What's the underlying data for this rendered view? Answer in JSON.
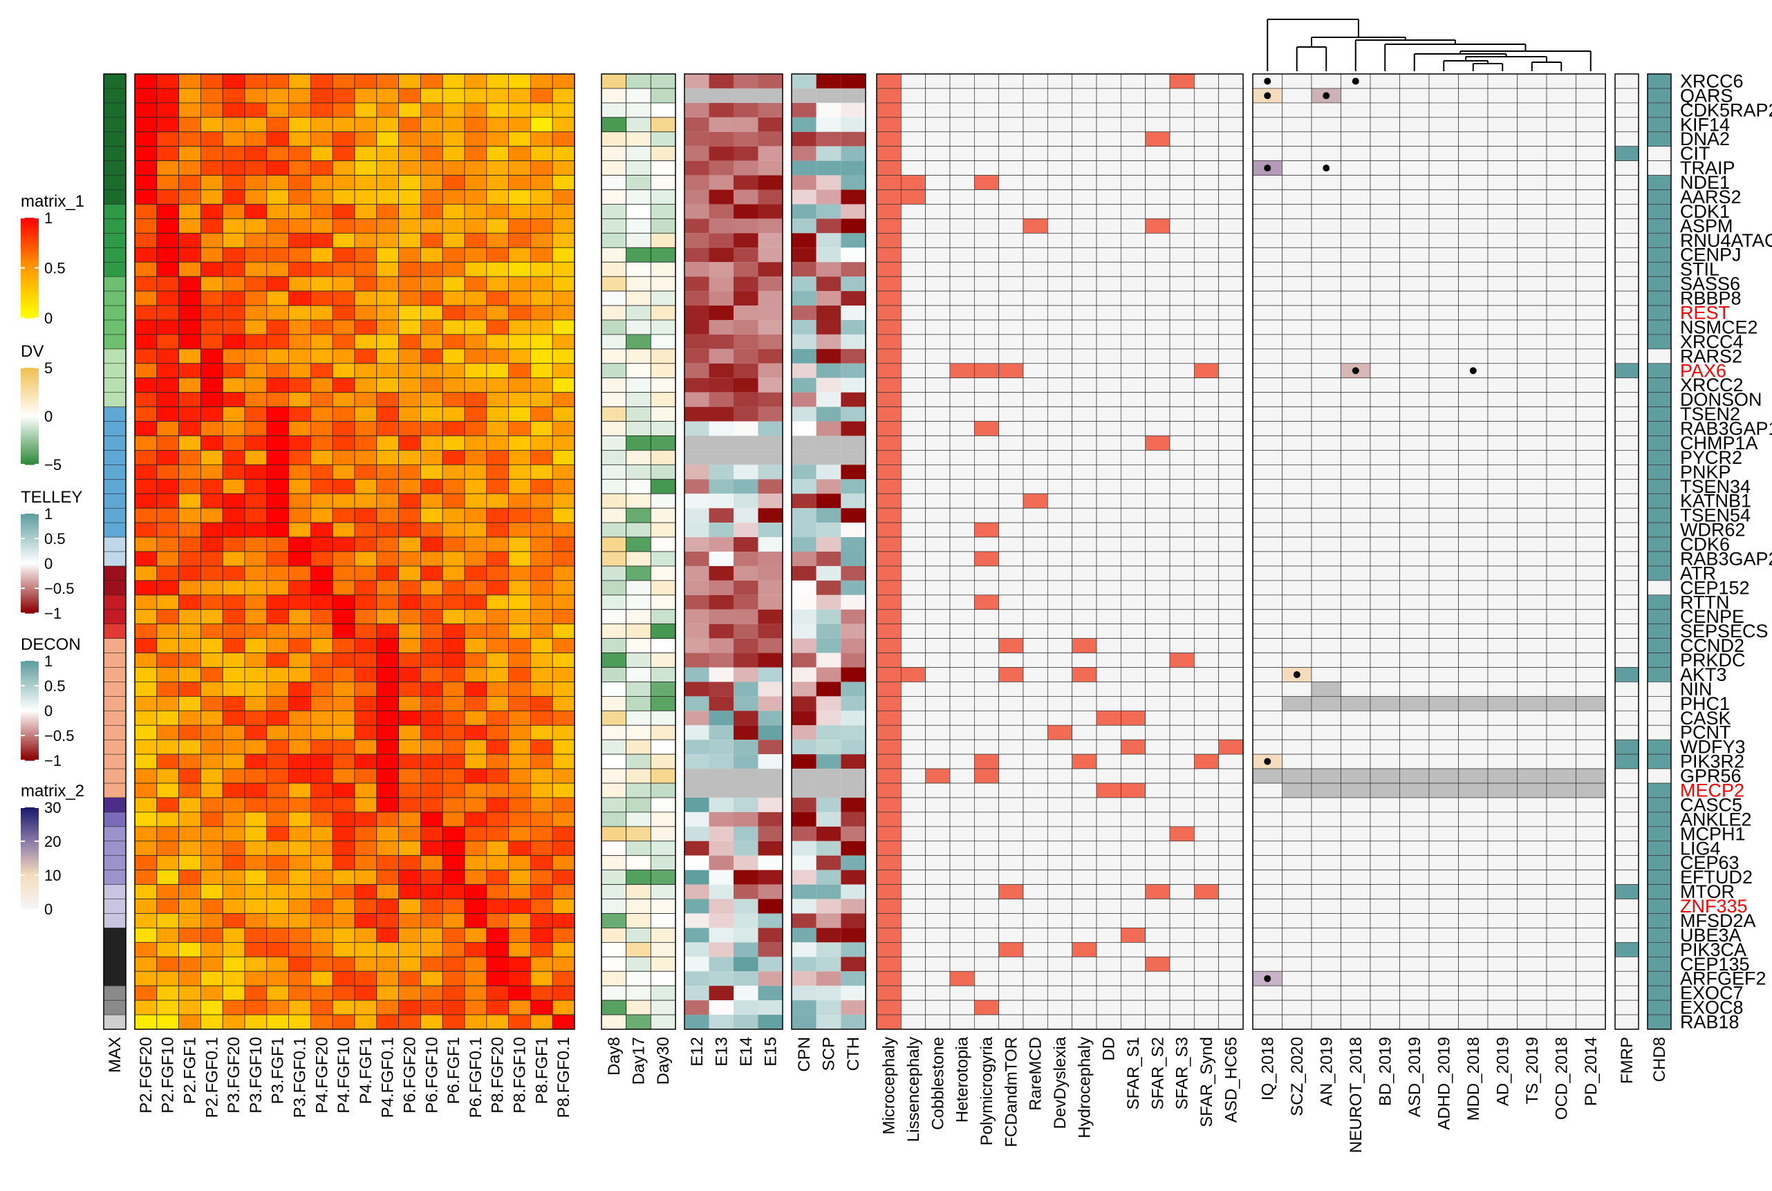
{
  "chart_data": {
    "type": "heatmap",
    "genes": [
      "XRCC6",
      "QARS",
      "CDK5RAP2",
      "KIF14",
      "DNA2",
      "CIT",
      "TRAIP",
      "NDE1",
      "AARS2",
      "CDK1",
      "ASPM",
      "RNU4ATAC",
      "CENPJ",
      "STIL",
      "SASS6",
      "RBBP8",
      "REST",
      "NSMCE2",
      "XRCC4",
      "RARS2",
      "PAX6",
      "XRCC2",
      "DONSON",
      "TSEN2",
      "RAB3GAP1",
      "CHMP1A",
      "PYCR2",
      "PNKP",
      "TSEN34",
      "KATNB1",
      "TSEN54",
      "WDR62",
      "CDK6",
      "RAB3GAP2",
      "ATR",
      "CEP152",
      "RTTN",
      "CENPE",
      "SEPSECS",
      "CCND2",
      "PRKDC",
      "AKT3",
      "NIN",
      "PHC1",
      "CASK",
      "PCNT",
      "WDFY3",
      "PIK3R2",
      "GPR56",
      "MECP2",
      "CASC5",
      "ANKLE2",
      "MCPH1",
      "LIG4",
      "CEP63",
      "EFTUD2",
      "MTOR",
      "ZNF335",
      "MFSD2A",
      "UBE3A",
      "PIK3CA",
      "CEP135",
      "ARFGEF2",
      "EXOC7",
      "EXOC8",
      "RAB18"
    ],
    "highlighted_genes": [
      "REST",
      "PAX6",
      "MECP2",
      "ZNF335"
    ],
    "highlight_color": "#ff0000",
    "max_column_label": "MAX",
    "max_cluster_colors": [
      "#1b6b2d",
      "#1b6b2d",
      "#1b6b2d",
      "#1b6b2d",
      "#1b6b2d",
      "#1b6b2d",
      "#1b6b2d",
      "#1b6b2d",
      "#1b6b2d",
      "#2e9a48",
      "#2e9a48",
      "#2e9a48",
      "#2e9a48",
      "#2e9a48",
      "#6cc070",
      "#6cc070",
      "#6cc070",
      "#6cc070",
      "#6cc070",
      "#b8e0b0",
      "#b8e0b0",
      "#b8e0b0",
      "#b8e0b0",
      "#5fa8d6",
      "#5fa8d6",
      "#5fa8d6",
      "#5fa8d6",
      "#5fa8d6",
      "#5fa8d6",
      "#5fa8d6",
      "#5fa8d6",
      "#5fa8d6",
      "#c0d8ea",
      "#c0d8ea",
      "#9e0f1e",
      "#9e0f1e",
      "#c41a26",
      "#c41a26",
      "#e03a33",
      "#f4a987",
      "#f4a987",
      "#f4a987",
      "#f4a987",
      "#f4a987",
      "#f4a987",
      "#f4a987",
      "#f4a987",
      "#f4a987",
      "#f4a987",
      "#f4a987",
      "#4d2d8a",
      "#7c6bb8",
      "#9d93cc",
      "#9d93cc",
      "#9d93cc",
      "#9d93cc",
      "#c8c5e3",
      "#c8c5e3",
      "#c8c5e3",
      "#222222",
      "#222222",
      "#222222",
      "#222222",
      "#8a8a8a",
      "#8a8a8a",
      "#cfcfcf"
    ],
    "matrix_1": {
      "columns": [
        "P2.FGF20",
        "P2.FGF10",
        "P2.FGF1",
        "P2.FGF0.1",
        "P3.FGF20",
        "P3.FGF10",
        "P3.FGF1",
        "P3.FGF0.1",
        "P4.FGF20",
        "P4.FGF10",
        "P4.FGF1",
        "P4.FGF0.1",
        "P6.FGF20",
        "P6.FGF10",
        "P6.FGF1",
        "P6.FGF0.1",
        "P8.FGF20",
        "P8.FGF10",
        "P8.FGF1",
        "P8.FGF0.1"
      ],
      "peak_column_per_gene": [
        0,
        0,
        0,
        0,
        0,
        0,
        0,
        0,
        0,
        1,
        1,
        1,
        1,
        1,
        2,
        2,
        2,
        2,
        2,
        3,
        3,
        3,
        3,
        6,
        6,
        6,
        6,
        6,
        6,
        6,
        6,
        6,
        7,
        7,
        8,
        8,
        9,
        9,
        9,
        11,
        11,
        11,
        11,
        11,
        11,
        11,
        11,
        11,
        11,
        11,
        11,
        13,
        14,
        14,
        14,
        14,
        15,
        15,
        15,
        16,
        16,
        16,
        16,
        17,
        18,
        19
      ],
      "scale": {
        "title": "matrix_1",
        "ticks": [
          1,
          0.5,
          0
        ],
        "range": [
          0,
          1
        ],
        "colors": [
          "#ffff00",
          "#ff9900",
          "#ff0000"
        ]
      }
    },
    "dv": {
      "columns": [
        "Day8",
        "Day17",
        "Day30"
      ],
      "scale": {
        "title": "DV",
        "ticks": [
          5,
          0,
          -5
        ],
        "range": [
          -5,
          5
        ],
        "colors": [
          "#2e8b3a",
          "#ffffff",
          "#f2c050"
        ]
      }
    },
    "telley": {
      "columns": [
        "E12",
        "E13",
        "E14",
        "E15"
      ],
      "missing_rows": [
        1,
        25,
        26,
        48,
        49
      ],
      "scale": {
        "title": "TELLEY",
        "ticks": [
          1,
          0.5,
          0,
          -0.5,
          -1
        ],
        "range": [
          -1,
          1
        ],
        "colors": [
          "#8b0000",
          "#ffffff",
          "#5f9ea0"
        ]
      }
    },
    "decon": {
      "columns": [
        "CPN",
        "SCP",
        "CTH"
      ],
      "missing_rows": [
        1,
        25,
        26,
        48,
        49
      ],
      "scale": {
        "title": "DECON",
        "ticks": [
          1,
          0.5,
          0,
          -0.5,
          -1
        ],
        "range": [
          -1,
          1
        ],
        "colors": [
          "#8b0000",
          "#ffffff",
          "#5f9ea0"
        ]
      }
    },
    "disease_categories": {
      "columns": [
        "Microcephaly",
        "Lissencephaly",
        "Cobblestone",
        "Heterotopia",
        "Polymicrogyria",
        "FCDandmTOR",
        "RareMCD",
        "DevDyslexia",
        "Hydrocephaly",
        "DD",
        "SFAR_S1",
        "SFAR_S2",
        "SFAR_S3",
        "SFAR_Synd",
        "ASD_HC65"
      ],
      "hit_color": "#f26b55",
      "hits": [
        [
          0,
          12
        ],
        [
          4,
          11
        ],
        [
          7,
          1
        ],
        [
          7,
          4
        ],
        [
          8,
          1
        ],
        [
          10,
          6
        ],
        [
          10,
          11
        ],
        [
          20,
          3
        ],
        [
          20,
          4
        ],
        [
          20,
          5
        ],
        [
          20,
          13
        ],
        [
          24,
          4
        ],
        [
          25,
          11
        ],
        [
          29,
          6
        ],
        [
          31,
          4
        ],
        [
          33,
          4
        ],
        [
          36,
          4
        ],
        [
          39,
          5
        ],
        [
          39,
          8
        ],
        [
          40,
          12
        ],
        [
          41,
          1
        ],
        [
          41,
          5
        ],
        [
          41,
          8
        ],
        [
          44,
          9
        ],
        [
          44,
          10
        ],
        [
          45,
          7
        ],
        [
          46,
          10
        ],
        [
          46,
          14
        ],
        [
          47,
          4
        ],
        [
          47,
          8
        ],
        [
          47,
          13
        ],
        [
          48,
          2
        ],
        [
          48,
          4
        ],
        [
          49,
          9
        ],
        [
          49,
          10
        ],
        [
          52,
          12
        ],
        [
          56,
          5
        ],
        [
          56,
          11
        ],
        [
          56,
          13
        ],
        [
          59,
          10
        ],
        [
          60,
          5
        ],
        [
          60,
          8
        ],
        [
          61,
          11
        ],
        [
          62,
          3
        ],
        [
          64,
          4
        ]
      ]
    },
    "gwas": {
      "columns": [
        "IQ_2018",
        "SCZ_2020",
        "AN_2019",
        "NEUROT_2018",
        "BD_2019",
        "ASD_2019",
        "ADHD_2019",
        "MDD_2018",
        "AD_2019",
        "TS_2019",
        "OCD_2018",
        "PD_2014"
      ],
      "cells": [
        [
          0,
          0,
          "#f5f5f5",
          true
        ],
        [
          0,
          3,
          "#f5f5f5",
          true
        ],
        [
          1,
          0,
          "#f5dcbc",
          true
        ],
        [
          1,
          2,
          "#cdb3b8",
          true
        ],
        [
          6,
          0,
          "#b49cb8",
          true
        ],
        [
          6,
          2,
          "#f5f5f5",
          true
        ],
        [
          20,
          3,
          "#d8b8b6",
          true
        ],
        [
          20,
          7,
          "#f5f5f5",
          true
        ],
        [
          41,
          1,
          "#f5dcbc",
          true
        ],
        [
          47,
          0,
          "#f5dcbc",
          true
        ],
        [
          62,
          0,
          "#c8b4c8",
          true
        ]
      ],
      "missing": [
        [
          42,
          2
        ]
      ],
      "missing_rows_from_col1": [
        43,
        49
      ],
      "missing_full_rows": [
        48
      ],
      "scale": {
        "title": "matrix_2",
        "ticks": [
          30,
          20,
          10,
          0
        ],
        "range": [
          0,
          30
        ],
        "colors": [
          "#f5f5f5",
          "#f5dcbc",
          "#8c7aa8",
          "#1a1a6e"
        ]
      }
    },
    "fmrp": {
      "label": "FMRP",
      "rows": [
        5,
        20,
        41,
        46,
        47,
        56,
        60
      ]
    },
    "chd8": {
      "label": "CHD8",
      "absent_rows": [
        5,
        6,
        19,
        35,
        42,
        43,
        44,
        45,
        48
      ]
    },
    "binary_color": "#5f9ea0"
  }
}
